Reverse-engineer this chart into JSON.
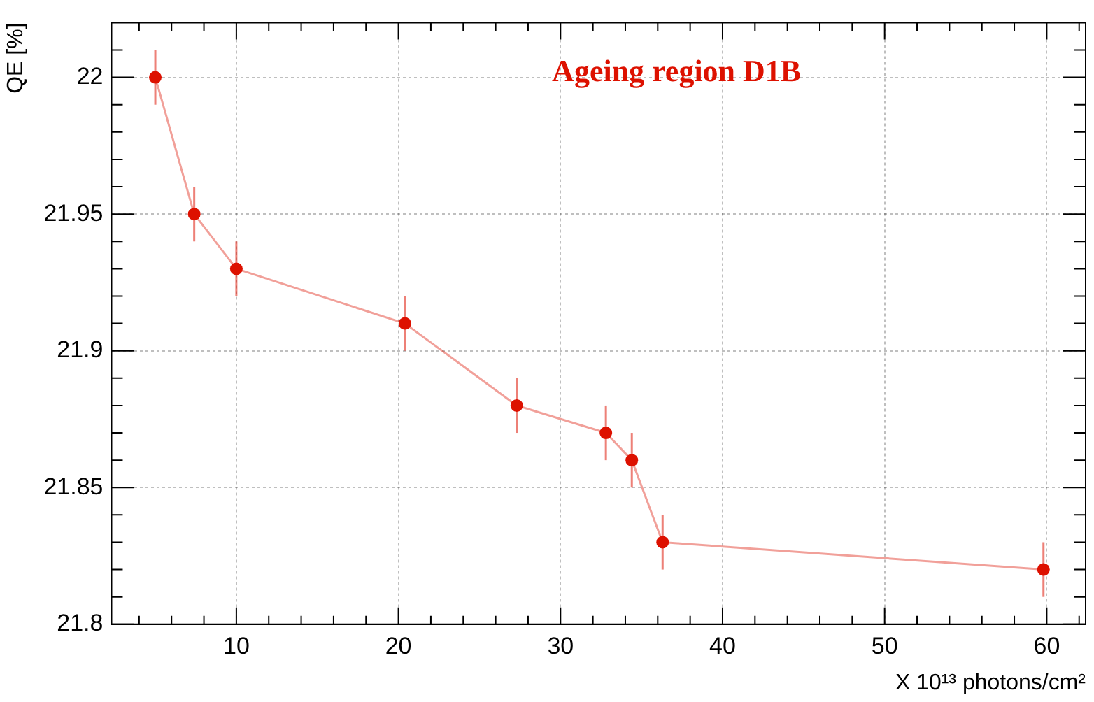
{
  "chart_data": {
    "type": "line",
    "title": "Ageing region D1B",
    "xlabel": "X 10¹³ photons/cm²",
    "ylabel": "QE [%]",
    "x": [
      5.0,
      7.4,
      10.0,
      20.4,
      27.3,
      32.8,
      34.4,
      36.3,
      59.8
    ],
    "series": [
      {
        "color": "#dd1100",
        "values": [
          22.0,
          21.95,
          21.93,
          21.91,
          21.88,
          21.87,
          21.86,
          21.83,
          21.82
        ],
        "errors": [
          0.01,
          0.01,
          0.01,
          0.01,
          0.01,
          0.01,
          0.01,
          0.01,
          0.01
        ]
      }
    ],
    "xlim": [
      2.3,
      62.4
    ],
    "xticks": [
      {
        "value": 4,
        "label": null
      },
      {
        "value": 6,
        "label": null
      },
      {
        "value": 8,
        "label": null
      },
      10,
      {
        "value": 12,
        "label": null
      },
      {
        "value": 14,
        "label": null
      },
      {
        "value": 16,
        "label": null
      },
      {
        "value": 18,
        "label": null
      },
      20,
      {
        "value": 22,
        "label": null
      },
      {
        "value": 24,
        "label": null
      },
      {
        "value": 26,
        "label": null
      },
      {
        "value": 28,
        "label": null
      },
      30,
      {
        "value": 32,
        "label": null
      },
      {
        "value": 34,
        "label": null
      },
      {
        "value": 36,
        "label": null
      },
      {
        "value": 38,
        "label": null
      },
      40,
      {
        "value": 42,
        "label": null
      },
      {
        "value": 44,
        "label": null
      },
      {
        "value": 46,
        "label": null
      },
      {
        "value": 48,
        "label": null
      },
      50,
      {
        "value": 52,
        "label": null
      },
      {
        "value": 54,
        "label": null
      },
      {
        "value": 56,
        "label": null
      },
      {
        "value": 58,
        "label": null
      },
      60,
      {
        "value": 62,
        "label": null
      }
    ],
    "ylim": [
      21.8,
      22.02
    ],
    "yticks": [
      21.8,
      {
        "value": 21.81,
        "label": null
      },
      {
        "value": 21.82,
        "label": null
      },
      {
        "value": 21.83,
        "label": null
      },
      {
        "value": 21.84,
        "label": null
      },
      21.85,
      {
        "value": 21.86,
        "label": null
      },
      {
        "value": 21.87,
        "label": null
      },
      {
        "value": 21.88,
        "label": null
      },
      {
        "value": 21.89,
        "label": null
      },
      21.9,
      {
        "value": 21.91,
        "label": null
      },
      {
        "value": 21.92,
        "label": null
      },
      {
        "value": 21.93,
        "label": null
      },
      {
        "value": 21.94,
        "label": null
      },
      21.95,
      {
        "value": 21.96,
        "label": null
      },
      {
        "value": 21.97,
        "label": null
      },
      {
        "value": 21.98,
        "label": null
      },
      {
        "value": 21.99,
        "label": null
      },
      22,
      {
        "value": 22.01,
        "label": null
      }
    ],
    "grid": true,
    "marker": "circle",
    "line_style": "solid"
  }
}
